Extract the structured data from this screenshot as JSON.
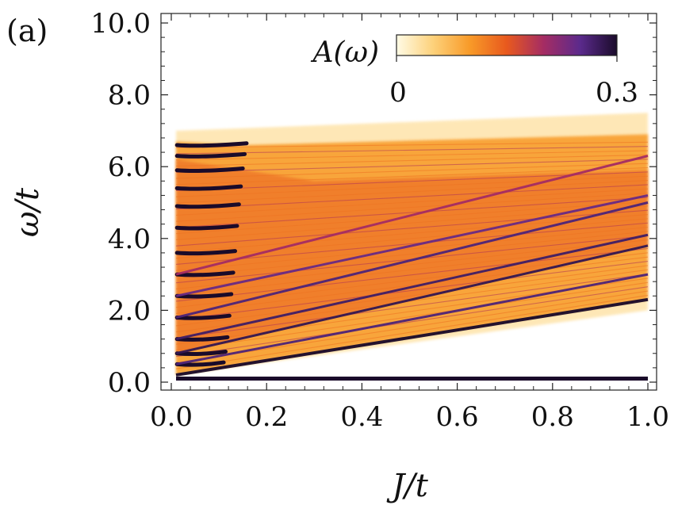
{
  "chart_data": {
    "type": "heatmap",
    "panel_label": "(a)",
    "title": "",
    "xlabel": "J/t",
    "ylabel": "ω/t",
    "xlim": [
      0.0,
      1.0
    ],
    "ylim": [
      0.0,
      10.0
    ],
    "x_ticks": [
      0.0,
      0.2,
      0.4,
      0.6,
      0.8,
      1.0
    ],
    "x_tick_labels": [
      "0.0",
      "0.2",
      "0.4",
      "0.6",
      "0.8",
      "1.0"
    ],
    "y_ticks": [
      0.0,
      2.0,
      4.0,
      6.0,
      8.0,
      10.0
    ],
    "y_tick_labels": [
      "0.0",
      "2.0",
      "4.0",
      "6.0",
      "8.0",
      "10.0"
    ],
    "colorbar": {
      "label": "A(ω)",
      "min_label": "0",
      "max_label": "0.3",
      "range": [
        0,
        0.3
      ],
      "stops": [
        "#fffbe6",
        "#fdd17a",
        "#f89a28",
        "#e8591e",
        "#a52c63",
        "#5b2a8c",
        "#1a0b2a"
      ],
      "placement": "top-right inside"
    },
    "continuum": {
      "lower_edge_at_J0": 0.2,
      "upper_edge_at_J0": 6.7,
      "upper_edge_at_J1": 7.3
    },
    "bands": [
      {
        "name": "zero-energy line",
        "omega_at_J0": 0.1,
        "omega_at_J1": 0.1,
        "intensity": 0.3
      },
      {
        "name": "band-1",
        "omega_at_J0": 0.2,
        "omega_at_J1": 2.3,
        "intensity": 0.3
      },
      {
        "name": "band-2",
        "omega_at_J0": 0.5,
        "omega_at_J1": 3.0,
        "intensity": 0.26
      },
      {
        "name": "band-3",
        "omega_at_J0": 0.8,
        "omega_at_J1": 3.8,
        "intensity": 0.28
      },
      {
        "name": "band-4",
        "omega_at_J0": 1.2,
        "omega_at_J1": 4.1,
        "intensity": 0.27
      },
      {
        "name": "band-5",
        "omega_at_J0": 1.8,
        "omega_at_J1": 5.0,
        "intensity": 0.26
      },
      {
        "name": "band-6",
        "omega_at_J0": 2.4,
        "omega_at_J1": 5.2,
        "intensity": 0.24
      },
      {
        "name": "band-7",
        "omega_at_J0": 3.0,
        "omega_at_J1": 6.3,
        "intensity": 0.2
      }
    ],
    "discrete_levels_at_J0": [
      0.5,
      0.8,
      1.2,
      1.8,
      2.4,
      3.0,
      3.6,
      4.3,
      4.9,
      5.4,
      5.9,
      6.3,
      6.6
    ]
  }
}
